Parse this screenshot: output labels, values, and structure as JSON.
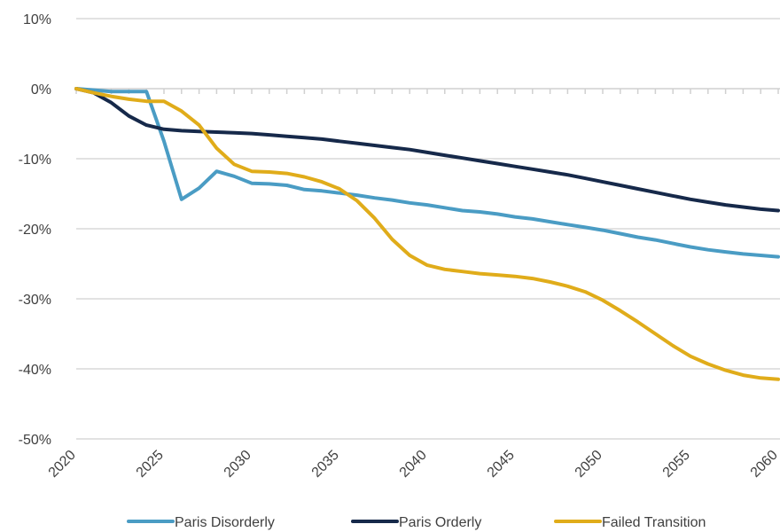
{
  "chart_data": {
    "type": "line",
    "title": "",
    "xlabel": "",
    "ylabel": "",
    "xlim": [
      2020,
      2060
    ],
    "ylim": [
      -50,
      10
    ],
    "x_ticks": [
      2020,
      2025,
      2030,
      2035,
      2040,
      2045,
      2050,
      2055,
      2060
    ],
    "x_tick_labels": [
      "2020",
      "2025",
      "2030",
      "2035",
      "2040",
      "2045",
      "2050",
      "2055",
      "2060"
    ],
    "y_ticks": [
      10,
      0,
      -10,
      -20,
      -30,
      -40,
      -50
    ],
    "y_tick_labels": [
      "10%",
      "0%",
      "-10%",
      "-20%",
      "-30%",
      "-40%",
      "-50%"
    ],
    "y_unit": "%",
    "grid": true,
    "legend_position": "bottom",
    "x": [
      2020,
      2021,
      2022,
      2023,
      2024,
      2025,
      2026,
      2027,
      2028,
      2029,
      2030,
      2031,
      2032,
      2033,
      2034,
      2035,
      2036,
      2037,
      2038,
      2039,
      2040,
      2041,
      2042,
      2043,
      2044,
      2045,
      2046,
      2047,
      2048,
      2049,
      2050,
      2051,
      2052,
      2053,
      2054,
      2055,
      2056,
      2057,
      2058,
      2059,
      2060
    ],
    "series": [
      {
        "name": "Paris Disorderly",
        "color": "#4a9cc4",
        "values": [
          0,
          -0.2,
          -0.4,
          -0.4,
          -0.4,
          -7.5,
          -15.8,
          -14.2,
          -11.8,
          -12.5,
          -13.5,
          -13.6,
          -13.8,
          -14.4,
          -14.6,
          -14.9,
          -15.2,
          -15.6,
          -15.9,
          -16.3,
          -16.6,
          -17.0,
          -17.4,
          -17.6,
          -17.9,
          -18.3,
          -18.6,
          -19.0,
          -19.4,
          -19.8,
          -20.2,
          -20.7,
          -21.2,
          -21.6,
          -22.1,
          -22.6,
          -23.0,
          -23.3,
          -23.6,
          -23.8,
          -24.0
        ]
      },
      {
        "name": "Paris Orderly",
        "color": "#16294a",
        "values": [
          0,
          -0.6,
          -2.0,
          -3.9,
          -5.2,
          -5.8,
          -6.0,
          -6.1,
          -6.2,
          -6.3,
          -6.4,
          -6.6,
          -6.8,
          -7.0,
          -7.2,
          -7.5,
          -7.8,
          -8.1,
          -8.4,
          -8.7,
          -9.1,
          -9.5,
          -9.9,
          -10.3,
          -10.7,
          -11.1,
          -11.5,
          -11.9,
          -12.3,
          -12.8,
          -13.3,
          -13.8,
          -14.3,
          -14.8,
          -15.3,
          -15.8,
          -16.2,
          -16.6,
          -16.9,
          -17.2,
          -17.4
        ]
      },
      {
        "name": "Failed Transition",
        "color": "#e0ac1a",
        "values": [
          0,
          -0.6,
          -1.1,
          -1.5,
          -1.8,
          -1.8,
          -3.2,
          -5.2,
          -8.5,
          -10.8,
          -11.8,
          -11.9,
          -12.1,
          -12.6,
          -13.3,
          -14.3,
          -16.0,
          -18.5,
          -21.5,
          -23.8,
          -25.2,
          -25.8,
          -26.1,
          -26.4,
          -26.6,
          -26.8,
          -27.1,
          -27.6,
          -28.2,
          -29.0,
          -30.2,
          -31.7,
          -33.3,
          -35.0,
          -36.7,
          -38.2,
          -39.3,
          -40.2,
          -40.9,
          -41.3,
          -41.5
        ]
      }
    ]
  }
}
